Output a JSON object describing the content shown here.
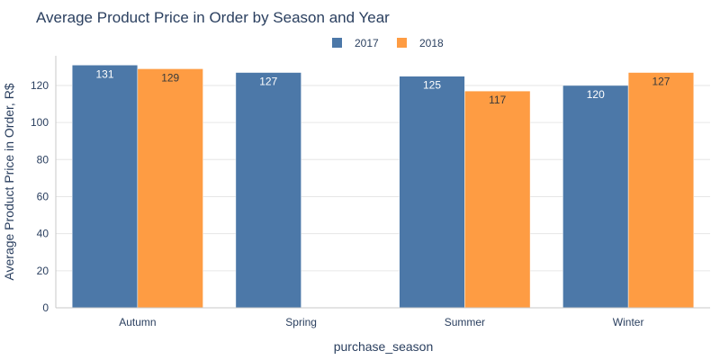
{
  "chart_data": {
    "type": "bar",
    "title": "Average Product Price in Order by Season and Year",
    "xlabel": "purchase_season",
    "ylabel": "Average Product Price in Order, R$",
    "categories": [
      "Autumn",
      "Spring",
      "Summer",
      "Winter"
    ],
    "series": [
      {
        "name": "2017",
        "color": "#4c78a8",
        "values": [
          131,
          127,
          125,
          120
        ],
        "labels": [
          "131",
          "127",
          "125",
          "120"
        ]
      },
      {
        "name": "2018",
        "color": "#fe9c43",
        "values": [
          129,
          null,
          117,
          127
        ],
        "labels": [
          "129",
          "",
          "117",
          "127"
        ]
      }
    ],
    "ylim": [
      0,
      136
    ],
    "yticks": [
      0,
      20,
      40,
      60,
      80,
      100,
      120
    ],
    "grid": true,
    "legend_position": "top-center"
  }
}
